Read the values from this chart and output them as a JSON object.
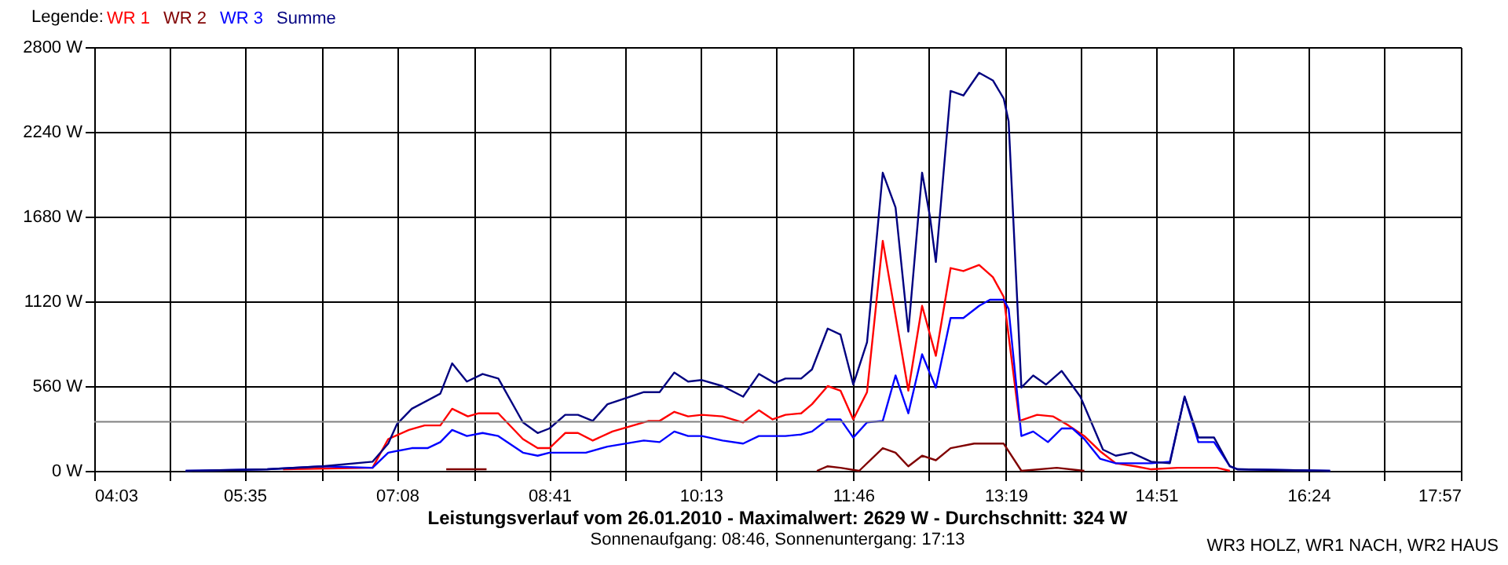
{
  "chart_data": {
    "type": "line",
    "title": "Leistungsverlauf vom 26.01.2010 - Maximalwert: 2629 W - Durchschnitt: 324 W",
    "subtitle": "Sonnenaufgang: 08:46, Sonnenuntergang: 17:13",
    "legend_title": "Legende:",
    "annotations": [
      "WR3 HOLZ, WR1 NACH, WR2 HAUS"
    ],
    "xlim": [
      4.05,
      17.95
    ],
    "xticks": [
      {
        "value": 4.05,
        "label": "04:03"
      },
      {
        "value": 4.82,
        "label": null
      },
      {
        "value": 5.58,
        "label": "05:35"
      },
      {
        "value": 6.36,
        "label": null
      },
      {
        "value": 7.13,
        "label": "07:08"
      },
      {
        "value": 7.91,
        "label": null
      },
      {
        "value": 8.68,
        "label": "08:41"
      },
      {
        "value": 9.45,
        "label": null
      },
      {
        "value": 10.22,
        "label": "10:13"
      },
      {
        "value": 10.99,
        "label": null
      },
      {
        "value": 11.77,
        "label": "11:46"
      },
      {
        "value": 12.54,
        "label": null
      },
      {
        "value": 13.32,
        "label": "13:19"
      },
      {
        "value": 14.08,
        "label": null
      },
      {
        "value": 14.85,
        "label": "14:51"
      },
      {
        "value": 15.63,
        "label": null
      },
      {
        "value": 16.4,
        "label": "16:24"
      },
      {
        "value": 17.17,
        "label": null
      },
      {
        "value": 17.95,
        "label": "17:57"
      }
    ],
    "ylim": [
      0,
      2800
    ],
    "yticks": [
      {
        "value": 0,
        "label": "0 W"
      },
      {
        "value": 560,
        "label": "560 W"
      },
      {
        "value": 1120,
        "label": "1120 W"
      },
      {
        "value": 1680,
        "label": "1680 W"
      },
      {
        "value": 2240,
        "label": "2240 W"
      },
      {
        "value": 2800,
        "label": "2800 W"
      }
    ],
    "grid": true,
    "legend": "top left",
    "marker": "none",
    "line_style": "solid",
    "ref_lines": [
      {
        "axis": "y",
        "value": 324,
        "color": "#808080"
      }
    ],
    "series": [
      {
        "name": "WR 1",
        "color": "#ff0000",
        "x": [
          5.97,
          6.88,
          7.04,
          7.25,
          7.41,
          7.57,
          7.69,
          7.85,
          7.96,
          8.16,
          8.41,
          8.56,
          8.68,
          8.84,
          8.97,
          9.12,
          9.32,
          9.69,
          9.8,
          9.95,
          10.09,
          10.23,
          10.44,
          10.65,
          10.81,
          10.95,
          11.08,
          11.24,
          11.35,
          11.51,
          11.64,
          11.77,
          11.91,
          12.07,
          12.33,
          12.47,
          12.61,
          12.76,
          12.89,
          13.05,
          13.19,
          13.3,
          13.46,
          13.64,
          13.8,
          13.96,
          14.12,
          14.28,
          14.44,
          14.64,
          14.8,
          15.07,
          15.47,
          15.6
        ],
        "values": [
          10,
          20,
          210,
          270,
          300,
          300,
          410,
          360,
          380,
          380,
          210,
          150,
          150,
          250,
          250,
          200,
          260,
          330,
          330,
          390,
          360,
          370,
          360,
          320,
          400,
          340,
          370,
          380,
          440,
          560,
          530,
          340,
          520,
          1520,
          530,
          1090,
          760,
          1340,
          1320,
          1360,
          1280,
          1150,
          330,
          370,
          360,
          300,
          230,
          130,
          50,
          30,
          10,
          20,
          20,
          0
        ]
      },
      {
        "name": "WR 2",
        "color": "#800000",
        "x": [
          7.63,
          8.04,
          9.0,
          11.4,
          11.51,
          11.64,
          11.83,
          12.07,
          12.2,
          12.33,
          12.47,
          12.61,
          12.76,
          13.0,
          13.3,
          13.48,
          13.84,
          14.12
        ],
        "values": [
          10,
          10,
          null,
          0,
          30,
          20,
          0,
          150,
          120,
          30,
          100,
          70,
          150,
          180,
          180,
          0,
          20,
          0
        ]
      },
      {
        "name": "WR 3",
        "color": "#0000ff",
        "x": [
          4.98,
          5.81,
          6.37,
          6.88,
          7.04,
          7.28,
          7.44,
          7.57,
          7.69,
          7.84,
          8.0,
          8.16,
          8.41,
          8.56,
          8.68,
          9.05,
          9.27,
          9.64,
          9.8,
          9.95,
          10.09,
          10.23,
          10.44,
          10.65,
          10.81,
          11.08,
          11.24,
          11.35,
          11.51,
          11.64,
          11.77,
          11.91,
          12.07,
          12.2,
          12.33,
          12.47,
          12.61,
          12.76,
          12.89,
          13.05,
          13.16,
          13.3,
          13.35,
          13.48,
          13.6,
          13.75,
          13.89,
          14.0,
          14.12,
          14.28,
          14.44,
          14.8,
          14.99,
          15.14,
          15.28,
          15.44,
          15.6,
          15.68,
          16.62
        ],
        "values": [
          0,
          10,
          30,
          20,
          120,
          150,
          150,
          190,
          270,
          230,
          250,
          230,
          120,
          100,
          120,
          120,
          160,
          200,
          190,
          260,
          230,
          230,
          200,
          180,
          230,
          230,
          240,
          260,
          340,
          340,
          220,
          320,
          330,
          630,
          380,
          770,
          550,
          1010,
          1010,
          1090,
          1130,
          1130,
          1070,
          230,
          260,
          190,
          280,
          280,
          210,
          80,
          50,
          50,
          60,
          490,
          190,
          190,
          30,
          10,
          0
        ]
      },
      {
        "name": "Summe",
        "color": "#000080",
        "x": [
          4.98,
          5.81,
          6.37,
          6.88,
          7.04,
          7.13,
          7.28,
          7.57,
          7.69,
          7.84,
          8.0,
          8.16,
          8.41,
          8.56,
          8.68,
          8.84,
          8.97,
          9.12,
          9.27,
          9.64,
          9.8,
          9.95,
          10.09,
          10.23,
          10.44,
          10.65,
          10.81,
          10.97,
          11.08,
          11.24,
          11.35,
          11.51,
          11.64,
          11.77,
          11.91,
          12.07,
          12.2,
          12.33,
          12.47,
          12.55,
          12.61,
          12.76,
          12.89,
          13.05,
          13.19,
          13.3,
          13.35,
          13.48,
          13.6,
          13.73,
          13.89,
          14.08,
          14.31,
          14.44,
          14.6,
          14.8,
          14.99,
          15.14,
          15.28,
          15.44,
          15.6,
          15.68,
          16.62
        ],
        "values": [
          0,
          10,
          30,
          60,
          180,
          310,
          410,
          510,
          710,
          590,
          640,
          610,
          320,
          250,
          280,
          370,
          370,
          330,
          440,
          520,
          520,
          650,
          590,
          600,
          560,
          490,
          640,
          580,
          610,
          610,
          670,
          940,
          900,
          570,
          850,
          1970,
          1740,
          920,
          1970,
          1680,
          1380,
          2510,
          2480,
          2630,
          2580,
          2460,
          2310,
          550,
          630,
          570,
          660,
          490,
          140,
          100,
          120,
          60,
          50,
          490,
          220,
          220,
          30,
          10,
          0
        ]
      }
    ]
  }
}
